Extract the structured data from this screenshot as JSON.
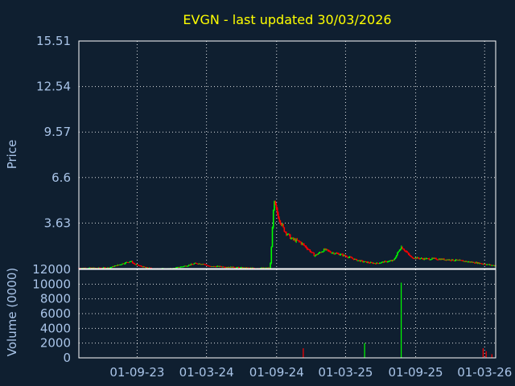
{
  "chart_data": [
    {
      "type": "candlestick",
      "title": "EVGN - last updated 30/03/2026",
      "ylabel": "Price",
      "ylim": [
        0.66,
        15.51
      ],
      "yticks": [
        "15.51",
        "12.54",
        "9.57",
        "6.6",
        "3.63"
      ],
      "ytick_values": [
        15.51,
        12.54,
        9.57,
        6.6,
        3.63
      ],
      "xlim": [
        "2023-04-01",
        "2026-03-30"
      ],
      "xgrid": [
        "2023-09-01",
        "2024-03-01",
        "2024-09-01",
        "2025-03-01",
        "2025-09-01",
        "2026-03-01"
      ],
      "up_color": "#00ff00",
      "down_color": "#ff0000",
      "grid": true,
      "series": [
        {
          "x": [
            "2023-04-01",
            "2023-05-15",
            "2023-06-20",
            "2023-07-20",
            "2023-08-15",
            "2023-08-25",
            "2023-09-10",
            "2023-09-25",
            "2023-10-15",
            "2023-11-01",
            "2023-12-01",
            "2024-01-10",
            "2024-02-01",
            "2024-02-20",
            "2024-03-10",
            "2024-04-01",
            "2024-05-01",
            "2024-06-01",
            "2024-06-25",
            "2024-07-15",
            "2024-08-01",
            "2024-08-15",
            "2024-08-25",
            "2024-09-05",
            "2024-09-20",
            "2024-10-10",
            "2024-11-01",
            "2024-11-20",
            "2024-12-10",
            "2025-01-05",
            "2025-01-25",
            "2025-02-15",
            "2025-03-10",
            "2025-04-01",
            "2025-05-01",
            "2025-05-20",
            "2025-06-10",
            "2025-06-25",
            "2025-07-05",
            "2025-07-25",
            "2025-08-20",
            "2025-09-20",
            "2025-10-20",
            "2025-11-20",
            "2025-12-20",
            "2026-01-20",
            "2026-02-20",
            "2026-03-15",
            "2026-03-30"
          ],
          "close": [
            0.7,
            0.7,
            0.72,
            0.95,
            1.15,
            0.95,
            0.82,
            0.72,
            0.66,
            0.66,
            0.66,
            0.86,
            1.0,
            0.98,
            0.8,
            0.8,
            0.76,
            0.72,
            0.7,
            0.7,
            0.7,
            0.7,
            5.0,
            4.1,
            3.2,
            2.6,
            2.4,
            2.0,
            1.5,
            1.9,
            1.7,
            1.6,
            1.4,
            1.2,
            1.05,
            1.0,
            1.1,
            1.15,
            1.2,
            2.1,
            1.4,
            1.3,
            1.3,
            1.25,
            1.2,
            1.1,
            1.0,
            0.9,
            0.85
          ]
        }
      ]
    },
    {
      "type": "bar",
      "ylabel": "Volume (0000)",
      "ylim": [
        0,
        12000
      ],
      "yticks": [
        "12000",
        "10000",
        "8000",
        "6000",
        "4000",
        "2000",
        "0"
      ],
      "ytick_values": [
        12000,
        10000,
        8000,
        6000,
        4000,
        2000,
        0
      ],
      "xlim": [
        "2023-04-01",
        "2026-03-30"
      ],
      "xticks": [
        "01-09-23",
        "01-03-24",
        "01-09-24",
        "01-03-25",
        "01-09-25",
        "01-03-26"
      ],
      "xtick_dates": [
        "2023-09-01",
        "2024-03-01",
        "2024-09-01",
        "2025-03-01",
        "2025-09-01",
        "2026-03-01"
      ],
      "grid": true,
      "bars": [
        {
          "x": "2024-11-10",
          "value": 1300,
          "color": "#ff0000"
        },
        {
          "x": "2025-04-20",
          "value": 2000,
          "color": "#00ff00"
        },
        {
          "x": "2025-07-25",
          "value": 10200,
          "color": "#00ff00"
        },
        {
          "x": "2026-02-25",
          "value": 1300,
          "color": "#ff0000"
        },
        {
          "x": "2026-03-05",
          "value": 900,
          "color": "#ff0000"
        },
        {
          "x": "2026-03-20",
          "value": 500,
          "color": "#ff0000"
        }
      ]
    }
  ]
}
